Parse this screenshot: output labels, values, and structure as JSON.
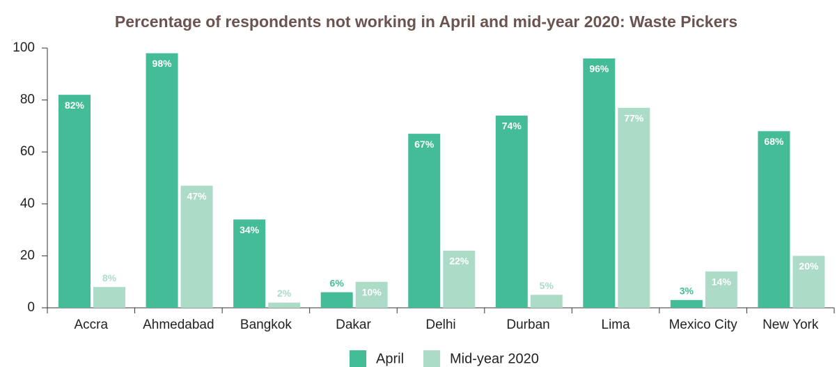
{
  "chart_data": {
    "type": "bar",
    "title": "Percentage of respondents not working in April and mid-year 2020: Waste Pickers",
    "categories": [
      "Accra",
      "Ahmedabad",
      "Bangkok",
      "Dakar",
      "Delhi",
      "Durban",
      "Lima",
      "Mexico City",
      "New York"
    ],
    "series": [
      {
        "name": "April",
        "color": "#45bc98",
        "values": [
          82,
          98,
          34,
          6,
          67,
          74,
          96,
          3,
          68
        ],
        "value_labels": [
          "82%",
          "98%",
          "34%",
          "6%",
          "67%",
          "74%",
          "96%",
          "3%",
          "68%"
        ]
      },
      {
        "name": "Mid-year 2020",
        "color": "#acdcc8",
        "values": [
          8,
          47,
          2,
          10,
          22,
          5,
          77,
          14,
          20
        ],
        "value_labels": [
          "8%",
          "47%",
          "2%",
          "10%",
          "22%",
          "5%",
          "77%",
          "14%",
          "20%"
        ]
      }
    ],
    "ylim": [
      0,
      100
    ],
    "yticks": [
      0,
      20,
      40,
      60,
      80,
      100
    ],
    "grid": false,
    "legend": "bottom"
  }
}
